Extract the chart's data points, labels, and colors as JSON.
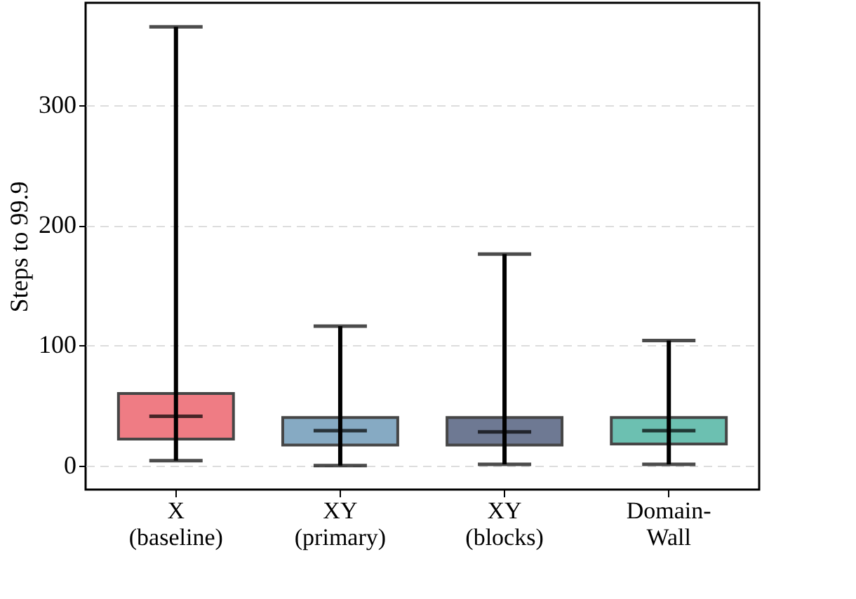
{
  "chart_data": {
    "type": "box",
    "ylabel": "Steps to 99.9",
    "categories": [
      "X (baseline)",
      "XY (primary)",
      "XY (blocks)",
      "Domain-Wall"
    ],
    "colors": [
      "#ee6e77",
      "#7aa1bd",
      "#5f6b88",
      "#5dbaa9"
    ],
    "boxes": [
      {
        "low": 4,
        "q1": 22,
        "median": 41,
        "q3": 60,
        "high": 365
      },
      {
        "low": 0,
        "q1": 17,
        "median": 29,
        "q3": 40,
        "high": 116
      },
      {
        "low": 1,
        "q1": 17,
        "median": 28,
        "q3": 40,
        "high": 176
      },
      {
        "low": 1,
        "q1": 18,
        "median": 29,
        "q3": 40,
        "high": 104
      }
    ],
    "ylim": [
      -20,
      385
    ],
    "yticks": [
      0,
      100,
      200,
      300
    ],
    "grid": "y"
  }
}
